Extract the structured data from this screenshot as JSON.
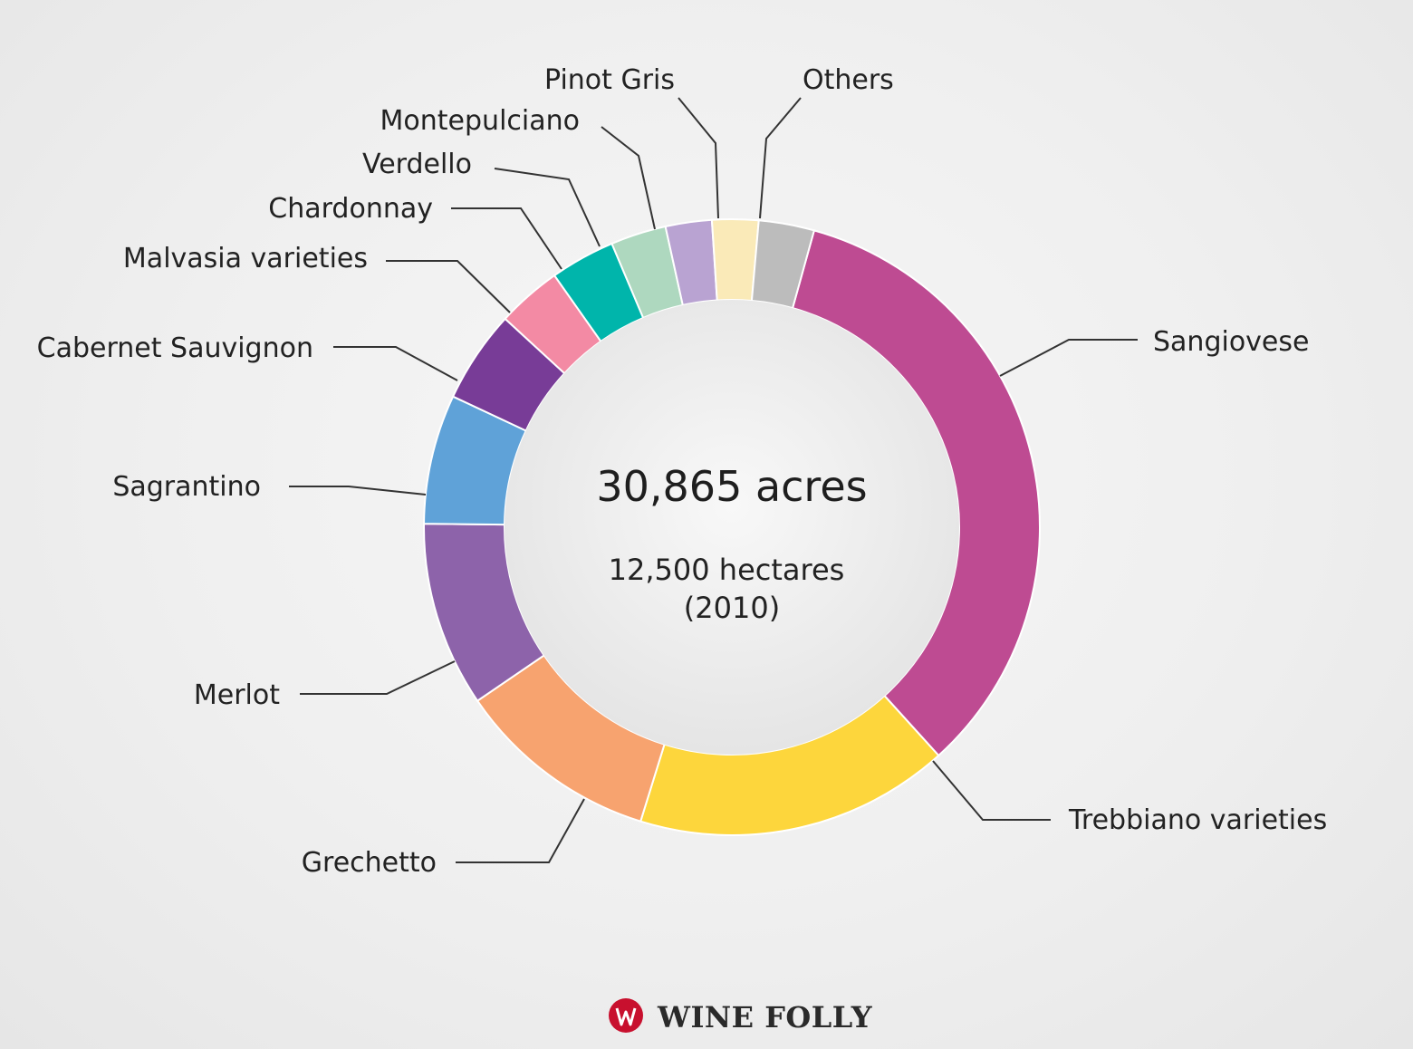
{
  "chart_data": {
    "type": "pie",
    "donut": true,
    "center_title": "30,865 acres",
    "center_subtitle_lines": [
      "12,500 hectares",
      "(2010)"
    ],
    "series": [
      {
        "label": "Sangiovese",
        "value": 35.0,
        "color": "#be4b92"
      },
      {
        "label": "Trebbiano varieties",
        "value": 17.0,
        "color": "#fdd63c"
      },
      {
        "label": "Grechetto",
        "value": 11.0,
        "color": "#f7a36f"
      },
      {
        "label": "Merlot",
        "value": 10.0,
        "color": "#8d63aa"
      },
      {
        "label": "Sagrantino",
        "value": 7.0,
        "color": "#5fa2d8"
      },
      {
        "label": "Cabernet Sauvignon",
        "value": 5.0,
        "color": "#783c97"
      },
      {
        "label": "Malvasia varieties",
        "value": 3.5,
        "color": "#f38aa4"
      },
      {
        "label": "Chardonnay",
        "value": 3.5,
        "color": "#00b5ab"
      },
      {
        "label": "Verdello",
        "value": 3.0,
        "color": "#aed8bf"
      },
      {
        "label": "Montepulciano",
        "value": 2.5,
        "color": "#b9a3d2"
      },
      {
        "label": "Pinot Gris",
        "value": 2.5,
        "color": "#faeab8"
      },
      {
        "label": "Others",
        "value": 3.0,
        "color": "#bcbcbc"
      }
    ]
  },
  "brand": {
    "name": "WINE FOLLY",
    "icon": "wine-folly-logo-icon",
    "icon_color": "#c8102e"
  }
}
